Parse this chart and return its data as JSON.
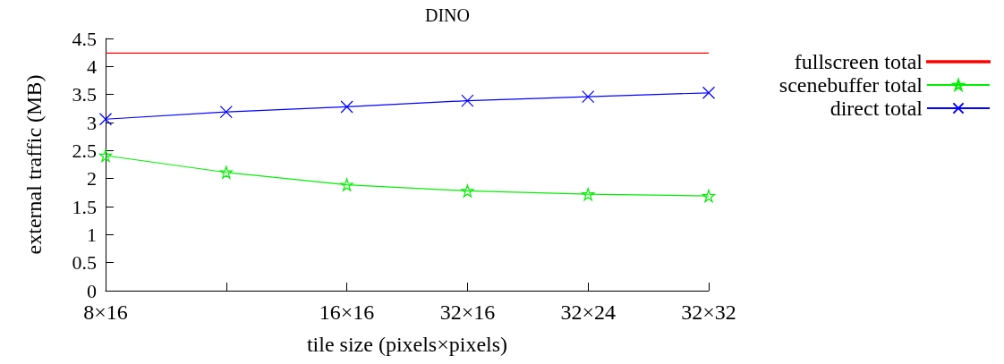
{
  "chart_data": {
    "type": "line",
    "title": "DINO",
    "xlabel": "tile size (pixels×pixels)",
    "ylabel": "external traffic (MB)",
    "categories": [
      "8×16",
      null,
      "16×16",
      "32×16",
      "32×24",
      "32×32"
    ],
    "ylim": [
      0,
      4.5
    ],
    "yticks": [
      0,
      0.5,
      1,
      1.5,
      2,
      2.5,
      3,
      3.5,
      4,
      4.5
    ],
    "grid": false,
    "legend": "top right",
    "series": [
      {
        "name": "fullscreen total",
        "color": "#ff0000",
        "marker": "none",
        "values": [
          4.24,
          4.24,
          4.24,
          4.24,
          4.24,
          4.24
        ]
      },
      {
        "name": "scenebuffer total",
        "color": "#00ee00",
        "marker": "star",
        "values": [
          2.41,
          2.11,
          1.89,
          1.78,
          1.72,
          1.69
        ]
      },
      {
        "name": "direct total",
        "color": "#0000ff",
        "marker": "cross",
        "values": [
          3.06,
          3.19,
          3.28,
          3.39,
          3.46,
          3.53
        ]
      }
    ]
  }
}
